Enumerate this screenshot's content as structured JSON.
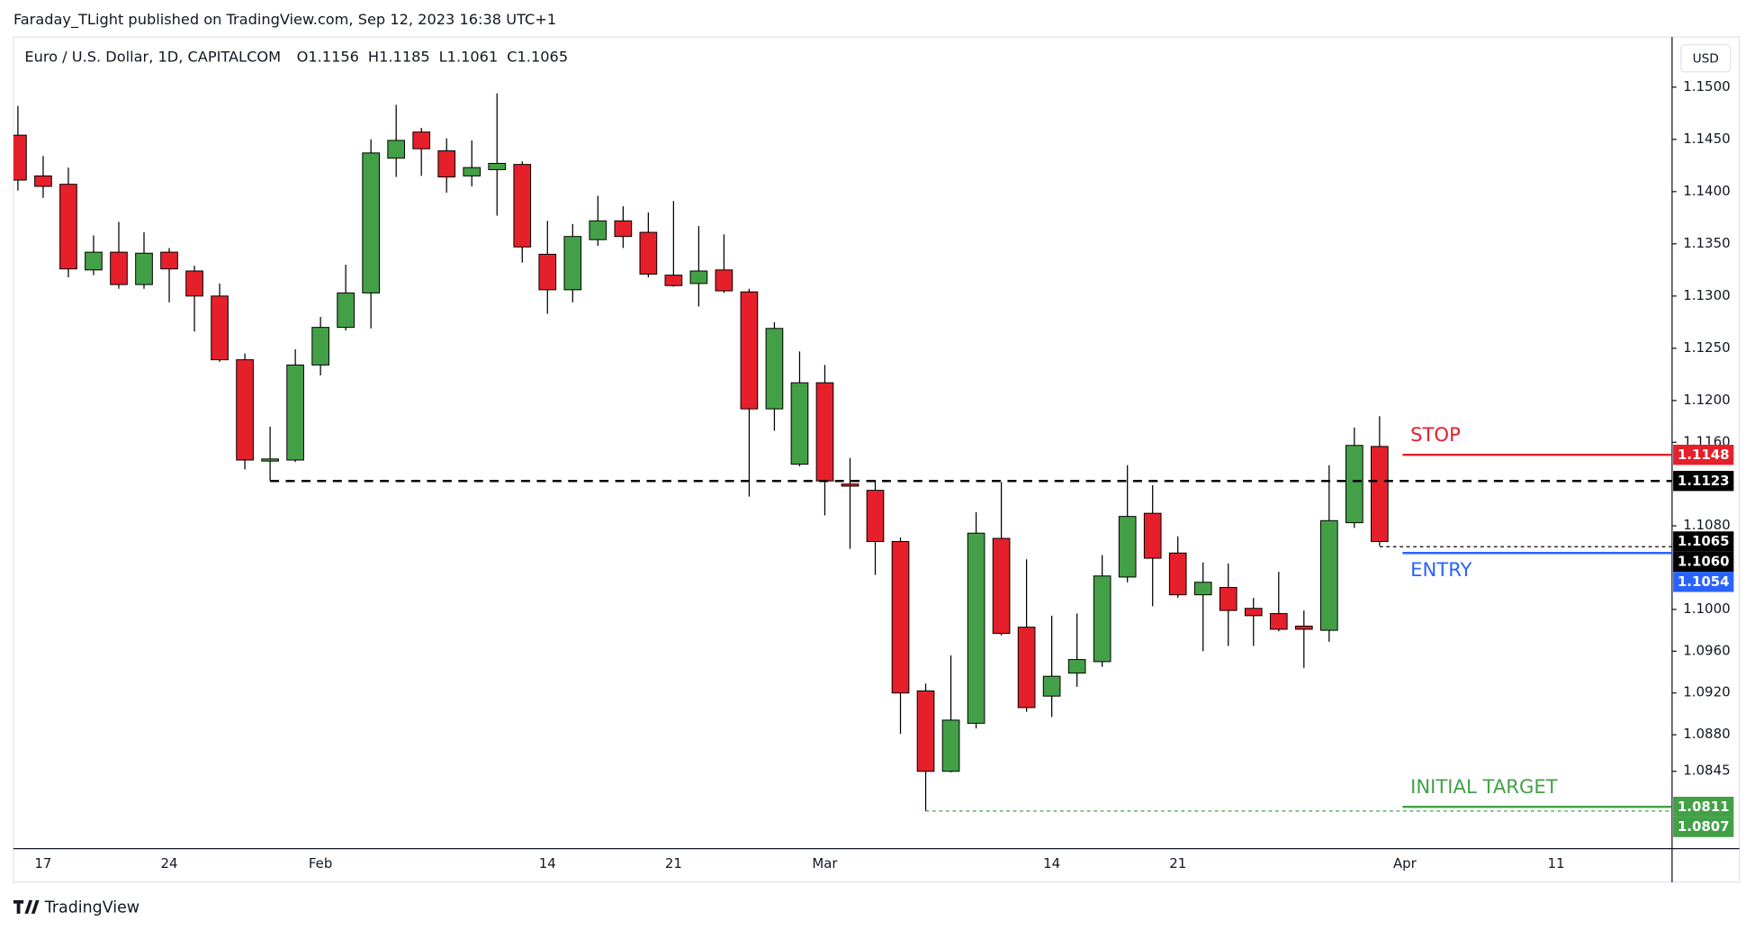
{
  "header": {
    "published": "Faraday_TLight published on TradingView.com, Sep 12, 2023 16:38 UTC+1"
  },
  "footer": {
    "brand": "TradingView"
  },
  "chart_data": {
    "type": "candlestick",
    "title": "Euro / U.S. Dollar, 1D, CAPITALCOM",
    "currency": "USD",
    "ohlc_prefixes": [
      "O",
      "H",
      "L",
      "C"
    ],
    "up_color": "#43a047",
    "down_color": "#e5202b",
    "wick_color": "#000000",
    "last_price_color": "#000000",
    "grid": false,
    "categories": [
      null,
      "17",
      null,
      null,
      null,
      null,
      "24",
      null,
      null,
      null,
      null,
      null,
      "Feb",
      null,
      null,
      null,
      null,
      null,
      null,
      null,
      null,
      "14",
      null,
      null,
      null,
      null,
      "21",
      null,
      null,
      null,
      null,
      null,
      "Mar",
      null,
      null,
      null,
      null,
      null,
      null,
      null,
      null,
      "14",
      null,
      null,
      null,
      null,
      "21",
      null,
      null,
      null,
      null,
      null,
      null,
      null,
      null,
      "Apr",
      null,
      null,
      null,
      null,
      null,
      "11",
      null,
      null,
      null,
      null
    ],
    "open": [
      1.1454,
      1.1415,
      1.1407,
      1.1325,
      1.1342,
      1.1311,
      1.1342,
      1.1324,
      1.13,
      1.1239,
      1.1142,
      1.1143,
      1.1234,
      1.127,
      1.1303,
      1.1432,
      1.1457,
      1.1439,
      1.1415,
      1.1421,
      1.1426,
      1.134,
      1.1306,
      1.1354,
      1.1372,
      1.1361,
      1.132,
      1.1312,
      1.1325,
      1.1304,
      1.1192,
      1.1139,
      1.1217,
      1.112,
      1.1114,
      1.1065,
      1.0922,
      1.0845,
      1.0891,
      1.1068,
      1.0983,
      1.0917,
      1.0939,
      1.095,
      1.1031,
      1.1092,
      1.1054,
      1.1014,
      1.1021,
      1.1001,
      1.0996,
      1.0984,
      1.098,
      1.1083,
      1.1156,
      null,
      null,
      null,
      null,
      null,
      null,
      null,
      null,
      null,
      null,
      null
    ],
    "high": [
      1.1482,
      1.1434,
      1.1423,
      1.1358,
      1.1371,
      1.1361,
      1.1346,
      1.1329,
      1.1312,
      1.1245,
      1.1175,
      1.1249,
      1.128,
      1.133,
      1.145,
      1.1483,
      1.1461,
      1.1451,
      1.1449,
      1.1494,
      1.1429,
      1.1372,
      1.1369,
      1.1396,
      1.1386,
      1.138,
      1.1391,
      1.1367,
      1.1359,
      1.1307,
      1.1275,
      1.1247,
      1.1234,
      1.1145,
      1.1124,
      1.1069,
      1.0929,
      1.0956,
      1.1093,
      1.1122,
      1.1048,
      1.0994,
      1.0996,
      1.1052,
      1.1138,
      1.1119,
      1.107,
      1.1045,
      1.1044,
      1.1011,
      1.1036,
      1.0999,
      1.1138,
      1.1174,
      1.1185,
      null,
      null,
      null,
      null,
      null,
      null,
      null,
      null,
      null,
      null,
      null
    ],
    "low": [
      1.1401,
      1.1394,
      1.1318,
      1.132,
      1.1307,
      1.1307,
      1.1294,
      1.1266,
      1.1237,
      1.1134,
      1.1123,
      1.1141,
      1.1224,
      1.1267,
      1.1269,
      1.1414,
      1.1415,
      1.1399,
      1.1405,
      1.1377,
      1.1332,
      1.1283,
      1.1294,
      1.1348,
      1.1346,
      1.1318,
      1.1309,
      1.129,
      1.1303,
      1.1108,
      1.1171,
      1.1137,
      1.109,
      1.1058,
      1.1033,
      1.0881,
      1.0807,
      1.0844,
      1.0886,
      1.0975,
      1.0902,
      1.0897,
      1.0926,
      1.0945,
      1.1026,
      1.1003,
      1.1011,
      1.096,
      1.0965,
      1.0965,
      1.0979,
      1.0944,
      1.0969,
      1.1078,
      1.1061,
      null,
      null,
      null,
      null,
      null,
      null,
      null,
      null,
      null,
      null,
      null
    ],
    "close": [
      1.1411,
      1.1405,
      1.1326,
      1.1342,
      1.1311,
      1.1341,
      1.1326,
      1.13,
      1.1239,
      1.1143,
      1.1144,
      1.1234,
      1.127,
      1.1303,
      1.1437,
      1.1449,
      1.1441,
      1.1414,
      1.1423,
      1.1427,
      1.1347,
      1.1306,
      1.1357,
      1.1372,
      1.1357,
      1.1321,
      1.131,
      1.1324,
      1.1305,
      1.1192,
      1.1269,
      1.1217,
      1.1123,
      1.1118,
      1.1065,
      1.092,
      1.0845,
      1.0894,
      1.1073,
      1.0977,
      1.0906,
      1.0936,
      1.0952,
      1.1032,
      1.1089,
      1.1049,
      1.1014,
      1.1026,
      1.0999,
      1.0994,
      1.0981,
      1.0981,
      1.1085,
      1.1157,
      1.1065,
      null,
      null,
      null,
      null,
      null,
      null,
      null,
      null,
      null,
      null,
      null
    ],
    "ylim": [
      1.0771,
      1.1548
    ],
    "yticks": [
      {
        "value": 1.15,
        "label": "1.1500"
      },
      {
        "value": 1.145,
        "label": "1.1450"
      },
      {
        "value": 1.14,
        "label": "1.1400"
      },
      {
        "value": 1.135,
        "label": "1.1350"
      },
      {
        "value": 1.13,
        "label": "1.1300"
      },
      {
        "value": 1.125,
        "label": "1.1250"
      },
      {
        "value": 1.12,
        "label": "1.1200"
      },
      {
        "value": 1.116,
        "label": "1.1160"
      },
      {
        "value": 1.108,
        "label": "1.1080"
      },
      {
        "value": 1.1,
        "label": "1.1000"
      },
      {
        "value": 1.096,
        "label": "1.0960"
      },
      {
        "value": 1.092,
        "label": "1.0920"
      },
      {
        "value": 1.088,
        "label": "1.0880"
      },
      {
        "value": 1.0845,
        "label": "1.0845"
      }
    ],
    "levels": [
      {
        "label": "STOP",
        "value": 1.1148,
        "color": "#e5202b",
        "style": "solid",
        "label_side": "above"
      },
      {
        "value": 1.1123,
        "color": "#000000",
        "style": "dashed"
      },
      {
        "value": 1.106,
        "value_label": "1.1060",
        "color": "#000000",
        "style": "dashed-thin"
      },
      {
        "label": "ENTRY",
        "value": 1.1054,
        "color": "#2962ff",
        "style": "solid",
        "label_side": "below"
      },
      {
        "label": "INITIAL TARGET",
        "value": 1.0811,
        "color": "#43a047",
        "style": "solid",
        "label_side": "above"
      },
      {
        "value": 1.0807,
        "color": "#43a047",
        "style": "dashed-thin"
      }
    ]
  }
}
